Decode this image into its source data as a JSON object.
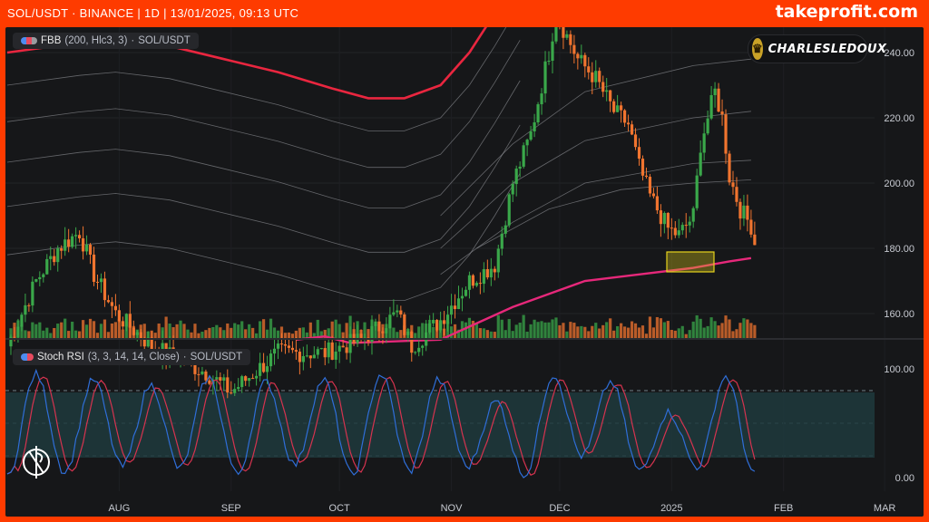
{
  "header": {
    "title": "SOL/USDT · BINANCE | 1D | 13/01/2025, 09:13 UTC",
    "brand": "takeprofit.com"
  },
  "indicators": {
    "price_label_name": "FBB",
    "price_label_params": "(200, Hlc3, 3)",
    "price_label_symbol": "SOL/USDT",
    "osc_label_name": "Stoch RSI",
    "osc_label_params": "(3, 3, 14, 14, Close)",
    "osc_label_symbol": "SOL/USDT"
  },
  "author": {
    "name": "CHARLESLEDOUX"
  },
  "colors": {
    "up": "#3aa84a",
    "down": "#f0742f",
    "basis": "#e9263f",
    "lower_band": "#e6287a",
    "fib_bands": "#9a9ba0",
    "k_line": "#2f6ed8",
    "d_line": "#d6334f",
    "zone": "#d8c51a"
  },
  "chart_data": [
    {
      "type": "candlestick",
      "title": "SOL/USDT · BINANCE | 1D",
      "y_ticks": [
        "160.00",
        "180.00",
        "200.00",
        "220.00",
        "240.00"
      ],
      "ylim": [
        153,
        248
      ],
      "x_ticks": [
        "AUG",
        "SEP",
        "OCT",
        "NOV",
        "DEC",
        "2025",
        "FEB",
        "MAR"
      ],
      "grid": true,
      "series": [
        {
          "name": "Price",
          "values_desc": "daily candles, Jul 2024 – 13 Jan 2025",
          "last_close": 181
        },
        {
          "name": "FBB basis (200)",
          "key_points": [
            [
              "2024-07-10",
              240
            ],
            [
              "2024-08-01",
              244
            ],
            [
              "2024-09-15",
              236
            ],
            [
              "2024-10-10",
              226
            ],
            [
              "2024-10-25",
              226
            ],
            [
              "2024-11-10",
              240
            ],
            [
              "2024-11-25",
              260
            ]
          ]
        },
        {
          "name": "FBB lower band",
          "key_points": [
            [
              "2024-11-05",
              153
            ],
            [
              "2024-12-01",
              165
            ],
            [
              "2025-01-01",
              174
            ],
            [
              "2025-01-13",
              177
            ]
          ]
        }
      ],
      "annotations": [
        {
          "type": "rectangle",
          "from": [
            "2025-01-14",
            173
          ],
          "to": [
            "2025-01-27",
            179
          ],
          "color": "#d8c51a"
        }
      ]
    },
    {
      "type": "line",
      "title": "Stoch RSI (3, 3, 14, 14, Close)",
      "y_ticks": [
        "0.00",
        "100.00"
      ],
      "ylim": [
        0,
        100
      ],
      "bands": [
        20,
        50,
        80
      ],
      "series": [
        {
          "name": "K",
          "color": "#2f6ed8"
        },
        {
          "name": "D",
          "color": "#d6334f"
        }
      ]
    }
  ]
}
